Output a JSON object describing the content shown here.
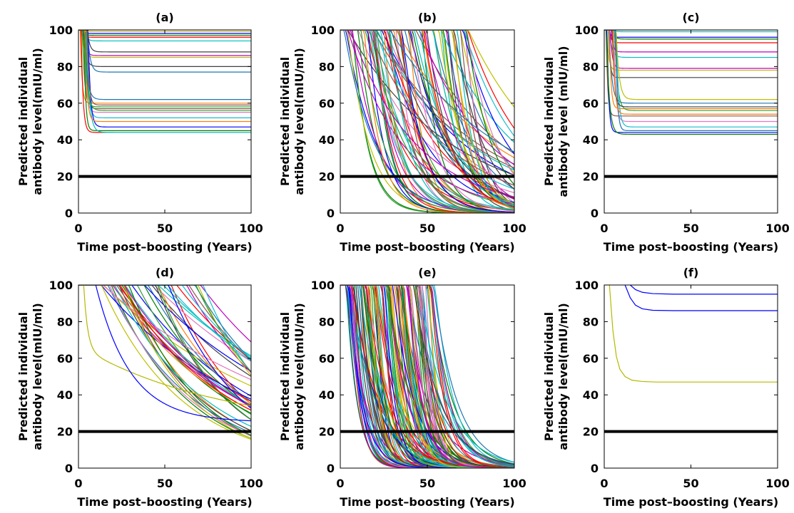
{
  "chart_data": [
    {
      "type": "line",
      "title": "(a)",
      "xlabel": "Time post–boosting (Years)",
      "ylabel_lines": [
        "Predicted individual",
        "antibody level(mIU/ml)"
      ],
      "xlim": [
        0,
        100
      ],
      "ylim": [
        0,
        100
      ],
      "xticks": [
        0,
        50,
        100
      ],
      "yticks": [
        0,
        20,
        40,
        60,
        80,
        100
      ],
      "grid": false,
      "threshold": 20,
      "model": "plateau",
      "decay_params": {
        "count": 24,
        "plateaus": [
          98,
          97,
          96,
          94,
          86,
          85,
          80,
          77,
          60,
          58,
          57,
          55,
          52,
          47,
          45,
          44,
          44,
          100,
          99,
          88,
          62,
          50,
          56,
          59
        ],
        "x_drop_range": [
          1,
          6
        ]
      }
    },
    {
      "type": "line",
      "title": "(b)",
      "xlabel": "Time post–boosting (Years)",
      "ylabel_lines": [
        "Predicted individual",
        "antibody level(mIU/ml)"
      ],
      "xlim": [
        0,
        100
      ],
      "ylim": [
        0,
        100
      ],
      "xticks": [
        0,
        50,
        100
      ],
      "yticks": [
        0,
        20,
        40,
        60,
        80,
        100
      ],
      "grid": false,
      "threshold": 20,
      "model": "exponential",
      "decay_params": {
        "count": 90,
        "start_range": [
          0,
          75
        ],
        "rate_range": [
          0.015,
          0.12
        ]
      }
    },
    {
      "type": "line",
      "title": "(c)",
      "xlabel": "Time post–boosting (Years)",
      "ylabel_lines": [
        "Predicted individual",
        "antibody level (mIU/ml)"
      ],
      "xlim": [
        0,
        100
      ],
      "ylim": [
        0,
        100
      ],
      "xticks": [
        0,
        50,
        100
      ],
      "yticks": [
        0,
        20,
        40,
        60,
        80,
        100
      ],
      "grid": false,
      "threshold": 20,
      "model": "plateau",
      "decay_params": {
        "count": 22,
        "plateaus": [
          96,
          95,
          93,
          85,
          79,
          78,
          74,
          60,
          57,
          56,
          53,
          50,
          47,
          44,
          43,
          100,
          99,
          88,
          62,
          58,
          45,
          54
        ],
        "x_drop_range": [
          1,
          7
        ]
      }
    },
    {
      "type": "line",
      "title": "(d)",
      "xlabel": "Time post–boosting (Years)",
      "ylabel_lines": [
        "Predicted individual",
        "antibody level(mIU/ml)"
      ],
      "xlim": [
        0,
        100
      ],
      "ylim": [
        0,
        100
      ],
      "xticks": [
        0,
        50,
        100
      ],
      "yticks": [
        0,
        20,
        40,
        60,
        80,
        100
      ],
      "grid": false,
      "threshold": 20,
      "model": "slow",
      "decay_params": {
        "count": 45,
        "start_range": [
          10,
          75
        ],
        "rate_range": [
          0.008,
          0.025
        ]
      }
    },
    {
      "type": "line",
      "title": "(e)",
      "xlabel": "Time post–boosting (Years)",
      "ylabel_lines": [
        "Predicted individual",
        "antibody level(mIU/ml)"
      ],
      "xlim": [
        0,
        100
      ],
      "ylim": [
        0,
        100
      ],
      "xticks": [
        0,
        50,
        100
      ],
      "yticks": [
        0,
        20,
        40,
        60,
        80,
        100
      ],
      "grid": false,
      "threshold": 20,
      "model": "fast",
      "decay_params": {
        "count": 150,
        "start_range": [
          3,
          55
        ],
        "rate_range": [
          0.06,
          0.22
        ]
      }
    },
    {
      "type": "line",
      "title": "(f)",
      "xlabel": "Time post–boosting (Years)",
      "ylabel_lines": [
        "Predicted individual",
        "antibody level(mIU/ml)"
      ],
      "xlim": [
        0,
        100
      ],
      "ylim": [
        0,
        100
      ],
      "xticks": [
        0,
        50,
        100
      ],
      "yticks": [
        0,
        20,
        40,
        60,
        80,
        100
      ],
      "grid": false,
      "threshold": 20,
      "model": "explicit",
      "series": [
        {
          "color": "#0000ff",
          "x": [
            15,
            18,
            22,
            28,
            40,
            60,
            100
          ],
          "y": [
            100,
            97.5,
            96,
            95.3,
            95,
            95,
            95
          ]
        },
        {
          "color": "#0000ff",
          "x": [
            12,
            15,
            18,
            22,
            28,
            40,
            60,
            100
          ],
          "y": [
            100,
            93,
            89,
            87,
            86.2,
            86,
            86,
            86
          ]
        },
        {
          "color": "#b5b800",
          "x": [
            3,
            5,
            7,
            9,
            12,
            16,
            22,
            30,
            50,
            100
          ],
          "y": [
            100,
            75,
            61,
            54,
            50,
            48,
            47.3,
            47,
            47,
            47
          ]
        }
      ]
    }
  ],
  "palette": [
    "#0000ff",
    "#008000",
    "#ff0000",
    "#00bfbf",
    "#bf00bf",
    "#bfbf00",
    "#404040",
    "#1f77b4",
    "#ff7f0e",
    "#2ca02c",
    "#8c564b",
    "#e377c2",
    "#17becf"
  ]
}
